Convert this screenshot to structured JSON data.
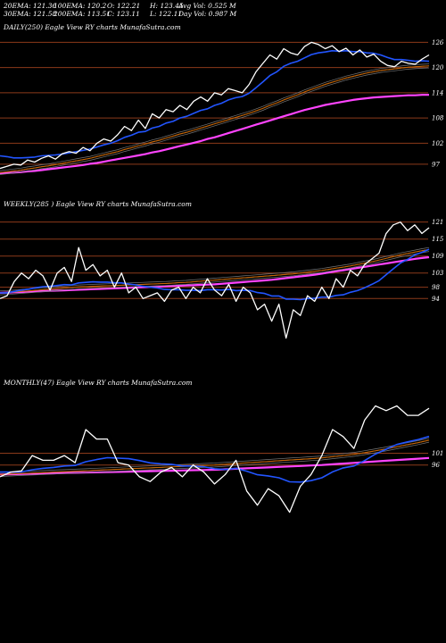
{
  "header": {
    "row1": [
      "20EMA: 121.36",
      "100EMA: 120.2",
      "O: 122.21",
      "H: 123.45",
      "Avg Vol: 0.525 M"
    ],
    "row2": [
      "30EMA: 121.58",
      "200EMA: 113.51",
      "C: 123.11",
      "L: 122.11",
      "Day Vol: 0.987 M"
    ]
  },
  "colors": {
    "background": "#000000",
    "price": "#ffffff",
    "ema_fast": "#2255ff",
    "ema_200": "#ff44ff",
    "ema_100": "#cc6600",
    "grid": "#8b3a1a"
  },
  "chart_data": [
    {
      "type": "line",
      "title": "DAILY(250) Eagle  View  RY charts MunafaSutra.com",
      "ylim": [
        94,
        128
      ],
      "levels": [
        126,
        120,
        114,
        108,
        102,
        97
      ],
      "x": [
        0,
        4,
        8,
        12,
        16,
        20,
        24,
        28,
        32,
        36,
        40,
        44,
        48,
        52,
        56,
        60,
        64,
        68,
        72,
        76,
        80,
        84,
        88,
        92,
        96,
        100,
        104,
        108,
        112,
        116,
        120,
        124,
        128,
        132,
        136,
        140,
        144,
        148,
        152,
        156,
        160,
        164,
        168,
        172,
        176,
        180,
        184,
        188,
        192,
        196,
        200,
        204,
        208,
        212,
        216,
        220,
        224,
        228,
        232,
        236,
        240,
        244,
        248
      ],
      "series": [
        {
          "values": [
            96,
            96.5,
            97,
            96.8,
            98,
            97.5,
            98.4,
            99,
            98.2,
            99.5,
            100,
            99.6,
            101,
            100.2,
            102,
            103,
            102.5,
            104,
            106,
            105,
            107.5,
            105.5,
            109,
            108,
            110,
            109.5,
            111,
            110,
            112,
            113,
            112,
            114,
            113.5,
            115,
            114.5,
            114,
            116,
            119,
            121,
            123,
            122,
            124.5,
            123.5,
            123,
            125,
            126,
            125.5,
            124.5,
            125.2,
            123.8,
            124.6,
            123,
            124.2,
            122.5,
            123.2,
            121.5,
            120.5,
            120.2,
            121.5,
            121,
            120.8,
            122,
            123
          ]
        },
        {
          "values": [
            99,
            98.8,
            98.5,
            98.5,
            98.6,
            98.7,
            99,
            99.1,
            99.2,
            99.4,
            99.7,
            100,
            100.3,
            100.6,
            101.1,
            101.6,
            102,
            102.6,
            103.4,
            103.9,
            104.6,
            104.8,
            105.6,
            106,
            106.8,
            107.2,
            108,
            108.4,
            109.1,
            109.8,
            110.2,
            111,
            111.5,
            112.3,
            112.8,
            113.1,
            113.9,
            115.2,
            116.6,
            118.1,
            119,
            120.3,
            121,
            121.5,
            122.3,
            123.1,
            123.5,
            123.7,
            124,
            123.9,
            124,
            123.8,
            123.8,
            123.5,
            123.4,
            123,
            122.4,
            121.9,
            121.9,
            121.7,
            121.5,
            121.6,
            121.5
          ]
        },
        {
          "values": [
            95,
            95.2,
            95.4,
            95.6,
            95.9,
            96.1,
            96.4,
            96.6,
            96.9,
            97.2,
            97.5,
            97.8,
            98.1,
            98.4,
            98.8,
            99.2,
            99.6,
            100,
            100.5,
            100.9,
            101.4,
            101.8,
            102.3,
            102.7,
            103.2,
            103.7,
            104.2,
            104.6,
            105.1,
            105.6,
            106.1,
            106.6,
            107.1,
            107.6,
            108.1,
            108.6,
            109.1,
            109.7,
            110.3,
            111,
            111.6,
            112.3,
            112.9,
            113.5,
            114.2,
            114.8,
            115.4,
            116,
            116.5,
            117,
            117.5,
            117.9,
            118.3,
            118.7,
            119,
            119.3,
            119.5,
            119.7,
            119.9,
            120.1,
            120.2,
            120.3,
            120.4
          ]
        },
        {
          "values": [
            94.8,
            94.9,
            95,
            95.1,
            95.3,
            95.4,
            95.6,
            95.8,
            96,
            96.2,
            96.4,
            96.6,
            96.8,
            97.1,
            97.3,
            97.6,
            97.9,
            98.2,
            98.5,
            98.8,
            99.1,
            99.4,
            99.8,
            100.1,
            100.5,
            100.9,
            101.3,
            101.7,
            102.1,
            102.5,
            103,
            103.4,
            103.9,
            104.4,
            104.9,
            105.4,
            105.9,
            106.4,
            106.9,
            107.4,
            107.9,
            108.4,
            108.9,
            109.4,
            109.9,
            110.3,
            110.7,
            111.1,
            111.4,
            111.7,
            112,
            112.3,
            112.5,
            112.7,
            112.9,
            113,
            113.1,
            113.2,
            113.3,
            113.4,
            113.4,
            113.5,
            113.5
          ]
        }
      ]
    },
    {
      "type": "line",
      "title": "WEEKLY(285                          ) Eagle  View  RY charts MunafaSutra.com",
      "ylim": [
        72,
        125
      ],
      "levels": [
        121,
        115,
        109,
        103,
        98,
        94
      ],
      "x": [
        0,
        4,
        8,
        12,
        16,
        20,
        24,
        28,
        32,
        36,
        40,
        44,
        48,
        52,
        56,
        60,
        64,
        68,
        72,
        76,
        80,
        84,
        88,
        92,
        96,
        100,
        104,
        108,
        112,
        116,
        120,
        124,
        128,
        132,
        136,
        140,
        144,
        148,
        152,
        156,
        160,
        164,
        168,
        172,
        176,
        180,
        184,
        188,
        192,
        196,
        200,
        204,
        208,
        212,
        216,
        220,
        224,
        228,
        232,
        236,
        240
      ],
      "series": [
        {
          "values": [
            94,
            95,
            100,
            103,
            101,
            104,
            102,
            97,
            103,
            105,
            100,
            112,
            104,
            106,
            102,
            104,
            98,
            103,
            96,
            98,
            94,
            95,
            96,
            93,
            97,
            98,
            94,
            98,
            96,
            101,
            97,
            95,
            99,
            93,
            98,
            96,
            90,
            92,
            86,
            92,
            80,
            90,
            88,
            95,
            93,
            98,
            94,
            101,
            98,
            104,
            102,
            106,
            108,
            110,
            117,
            120,
            121,
            118,
            120,
            117,
            119
          ]
        },
        {
          "values": [
            96,
            96,
            96.5,
            97,
            97.3,
            97.8,
            98.2,
            98.3,
            98.6,
            98.9,
            98.8,
            99.5,
            99.7,
            99.9,
            99.8,
            99.8,
            99.6,
            99.5,
            99.1,
            98.8,
            98.3,
            98,
            97.7,
            97.2,
            97.1,
            97.1,
            96.9,
            96.9,
            96.8,
            97.1,
            97.1,
            97,
            97.2,
            96.8,
            96.9,
            96.8,
            96.1,
            95.8,
            94.9,
            94.9,
            93.8,
            93.8,
            93.6,
            94,
            94.1,
            94.5,
            94.5,
            95.1,
            95.3,
            96.2,
            96.8,
            97.8,
            99,
            100.3,
            102.4,
            104.5,
            106.5,
            107.8,
            109.4,
            110.3,
            111.4
          ]
        },
        {
          "values": [
            96,
            96.1,
            96.3,
            96.5,
            96.7,
            96.9,
            97.1,
            97.3,
            97.5,
            97.7,
            97.9,
            98.1,
            98.2,
            98.3,
            98.4,
            98.5,
            98.6,
            98.7,
            98.8,
            98.9,
            99,
            99.1,
            99.2,
            99.3,
            99.4,
            99.6,
            99.7,
            99.9,
            100.1,
            100.3,
            100.5,
            100.7,
            100.9,
            101.1,
            101.3,
            101.5,
            101.7,
            101.9,
            102.1,
            102.3,
            102.5,
            102.7,
            103,
            103.3,
            103.6,
            103.9,
            104.3,
            104.7,
            105.1,
            105.5,
            106,
            106.5,
            107,
            107.6,
            108.2,
            108.8,
            109.4,
            109.9,
            110.4,
            110.9,
            111.3
          ]
        },
        {
          "values": [
            96,
            96.1,
            96.2,
            96.3,
            96.4,
            96.5,
            96.6,
            96.7,
            96.8,
            96.9,
            97,
            97.1,
            97.2,
            97.3,
            97.4,
            97.5,
            97.6,
            97.7,
            97.8,
            97.9,
            98,
            98.1,
            98.2,
            98.3,
            98.4,
            98.5,
            98.6,
            98.7,
            98.8,
            98.9,
            99,
            99.2,
            99.4,
            99.6,
            99.8,
            100,
            100.2,
            100.4,
            100.6,
            100.9,
            101.2,
            101.5,
            101.8,
            102.1,
            102.4,
            102.8,
            103.2,
            103.6,
            104,
            104.4,
            104.8,
            105.2,
            105.6,
            106,
            106.4,
            106.8,
            107.2,
            107.6,
            108,
            108.3,
            108.6
          ]
        }
      ]
    },
    {
      "type": "line",
      "title": "MONTHLY(47) Eagle  View  RY charts MunafaSutra.com",
      "ylim": [
        60,
        128
      ],
      "levels": [
        101,
        96
      ],
      "x": [
        0,
        6,
        12,
        18,
        24,
        30,
        36,
        42,
        48,
        54,
        60,
        66,
        72,
        78,
        84,
        90,
        96,
        102,
        108,
        114,
        120,
        126,
        132,
        138,
        144,
        150,
        156,
        162,
        168,
        174,
        180,
        186,
        192,
        198,
        204,
        210,
        216,
        222,
        228,
        234,
        240
      ],
      "series": [
        {
          "values": [
            91,
            93,
            93.5,
            100,
            98,
            98,
            100,
            97,
            111,
            107,
            107,
            97,
            96,
            91,
            89,
            93,
            95,
            91,
            96,
            93,
            88,
            92,
            98,
            85,
            79,
            86,
            83,
            76,
            87,
            92,
            100,
            111,
            108,
            103,
            115,
            121,
            119,
            121,
            117,
            117,
            120
          ]
        },
        {
          "values": [
            93,
            93,
            93.1,
            94,
            94.6,
            95,
            95.6,
            95.8,
            97.4,
            98.3,
            99.1,
            98.9,
            98.7,
            97.9,
            96.9,
            96.5,
            96.3,
            95.6,
            95.6,
            95.3,
            94.4,
            94.1,
            94.6,
            93.4,
            91.9,
            91.4,
            90.6,
            88.9,
            88.8,
            89.4,
            90.6,
            93.1,
            94.8,
            95.6,
            97.9,
            100.6,
            102.7,
            104.7,
            105.8,
            106.8,
            108.1
          ]
        },
        {
          "values": [
            92,
            92.2,
            92.4,
            92.6,
            92.8,
            93,
            93.2,
            93.4,
            93.6,
            93.8,
            94,
            94.2,
            94.4,
            94.6,
            94.8,
            95,
            95.2,
            95.4,
            95.6,
            95.8,
            96,
            96.3,
            96.6,
            96.9,
            97.2,
            97.5,
            97.8,
            98.1,
            98.4,
            98.7,
            99,
            99.5,
            100,
            100.5,
            101.2,
            102,
            102.8,
            103.7,
            104.6,
            105.5,
            106.5
          ]
        },
        {
          "values": [
            92,
            92.1,
            92.2,
            92.3,
            92.4,
            92.5,
            92.6,
            92.7,
            92.8,
            92.9,
            93,
            93.1,
            93.2,
            93.3,
            93.4,
            93.5,
            93.6,
            93.7,
            93.8,
            93.9,
            94,
            94.2,
            94.4,
            94.6,
            94.8,
            95,
            95.2,
            95.4,
            95.6,
            95.8,
            96,
            96.3,
            96.6,
            96.9,
            97.2,
            97.5,
            97.8,
            98.1,
            98.4,
            98.7,
            99
          ]
        }
      ]
    }
  ]
}
